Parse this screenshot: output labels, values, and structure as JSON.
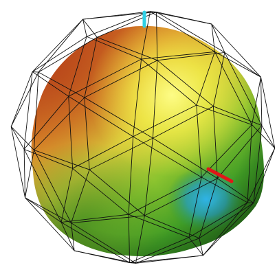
{
  "viewer": {
    "background": "#ffffff",
    "surface_palette": [
      "#c8541f",
      "#e59a2a",
      "#f2ef4a",
      "#8fca2f",
      "#3f9e25",
      "#2a8f7c",
      "#27a8d8"
    ],
    "wireframe_color": "#111111",
    "markers": [
      {
        "name": "cyan-marker",
        "color": "#2fd0e6"
      },
      {
        "name": "red-marker",
        "color": "#e01818"
      }
    ]
  }
}
